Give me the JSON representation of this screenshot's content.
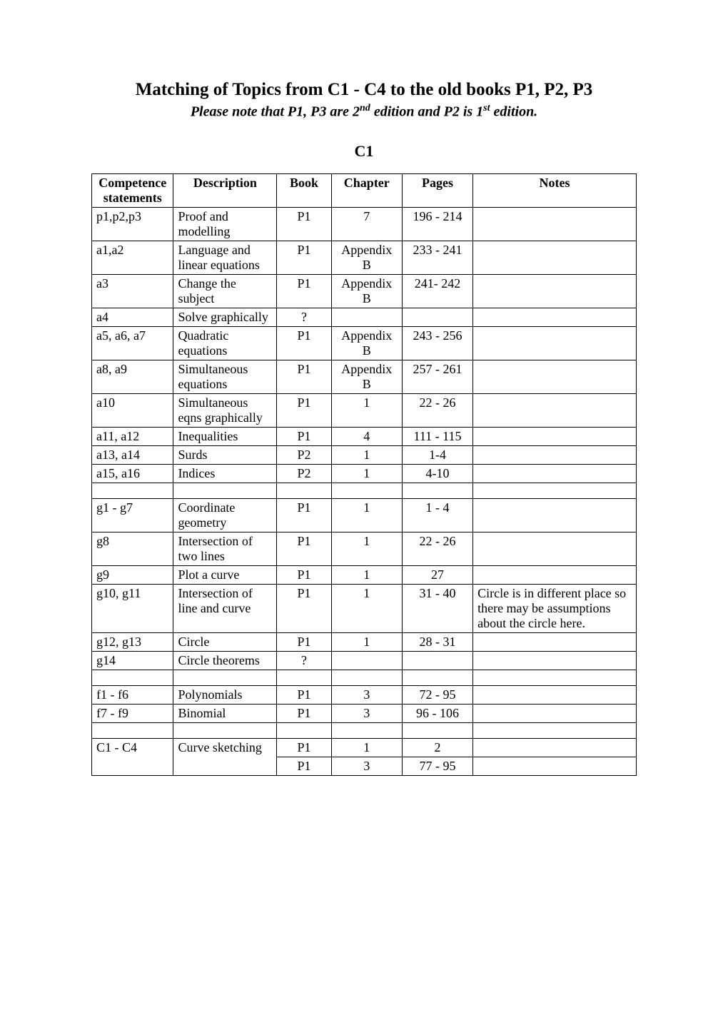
{
  "title": "Matching of Topics from C1 - C4 to the old books P1, P2, P3",
  "subtitle_html": "Please note that P1, P3 are 2<sup>nd</sup> edition and P2 is 1<sup>st</sup> edition.",
  "section_heading": "C1",
  "headers": {
    "col1": "Competence\nstatements",
    "col2": "Description",
    "col3": "Book",
    "col4": "Chapter",
    "col5": "Pages",
    "col6": "Notes"
  },
  "rows": [
    {
      "type": "data",
      "c1": "p1,p2,p3",
      "c2": "Proof and modelling",
      "c3": "P1",
      "c4": "7",
      "c5": "196 - 214",
      "c6": ""
    },
    {
      "type": "data",
      "c1": "a1,a2",
      "c2": "Language and linear equations",
      "c3": "P1",
      "c4": "Appendix B",
      "c5": "233 - 241",
      "c6": ""
    },
    {
      "type": "data",
      "c1": "a3",
      "c2": "Change the subject",
      "c3": "P1",
      "c4": "Appendix B",
      "c5": "241- 242",
      "c6": ""
    },
    {
      "type": "data",
      "c1": "a4",
      "c2": "Solve graphically",
      "c3": "?",
      "c4": "",
      "c5": "",
      "c6": ""
    },
    {
      "type": "data",
      "c1": "a5, a6, a7",
      "c2": "Quadratic equations",
      "c3": "P1",
      "c4": "Appendix B",
      "c5": "243 - 256",
      "c6": ""
    },
    {
      "type": "data",
      "c1": "a8, a9",
      "c2": "Simultaneous equations",
      "c3": "P1",
      "c4": "Appendix B",
      "c5": "257 - 261",
      "c6": ""
    },
    {
      "type": "data",
      "c1": "a10",
      "c2": "Simultaneous eqns graphically",
      "c3": "P1",
      "c4": "1",
      "c5": "22 - 26",
      "c6": ""
    },
    {
      "type": "data",
      "c1": "a11, a12",
      "c2": "Inequalities",
      "c3": "P1",
      "c4": "4",
      "c5": "111 - 115",
      "c6": ""
    },
    {
      "type": "data",
      "c1": "a13, a14",
      "c2": "Surds",
      "c3": "P2",
      "c4": "1",
      "c5": "1-4",
      "c6": ""
    },
    {
      "type": "data",
      "c1": "a15, a16",
      "c2": "Indices",
      "c3": "P2",
      "c4": "1",
      "c5": "4-10",
      "c6": ""
    },
    {
      "type": "empty"
    },
    {
      "type": "data",
      "c1": "g1 -  g7",
      "c2": "Coordinate geometry",
      "c3": "P1",
      "c4": "1",
      "c5": "1 - 4",
      "c6": ""
    },
    {
      "type": "data",
      "c1": "g8",
      "c2": "Intersection of two lines",
      "c3": "P1",
      "c4": "1",
      "c5": "22 - 26",
      "c6": ""
    },
    {
      "type": "data",
      "c1": "g9",
      "c2": "Plot a curve",
      "c3": "P1",
      "c4": "1",
      "c5": "27",
      "c6": ""
    },
    {
      "type": "data",
      "c1": "g10, g11",
      "c2": "Intersection of line and curve",
      "c3": "P1",
      "c4": "1",
      "c5": "31 - 40",
      "c6": "Circle is in different place so there may be assumptions about the circle here."
    },
    {
      "type": "data",
      "c1": "g12, g13",
      "c2": "Circle",
      "c3": "P1",
      "c4": "1",
      "c5": "28 - 31",
      "c6": ""
    },
    {
      "type": "data",
      "c1": "g14",
      "c2": "Circle theorems",
      "c3": "?",
      "c4": "",
      "c5": "",
      "c6": ""
    },
    {
      "type": "empty"
    },
    {
      "type": "data",
      "c1": "f1 - f6",
      "c2": "Polynomials",
      "c3": "P1",
      "c4": "3",
      "c5": "72 - 95",
      "c6": ""
    },
    {
      "type": "data",
      "c1": "f7 - f9",
      "c2": "Binomial",
      "c3": "P1",
      "c4": "3",
      "c5": "96 - 106",
      "c6": ""
    },
    {
      "type": "empty"
    },
    {
      "type": "double",
      "c1": "C1 - C4",
      "c2": "Curve sketching",
      "rows": [
        {
          "c3": "P1",
          "c4": "1",
          "c5": "2",
          "c6": ""
        },
        {
          "c3": "P1",
          "c4": "3",
          "c5": "77 - 95",
          "c6": ""
        }
      ]
    }
  ],
  "col_widths": [
    "15%",
    "19%",
    "10%",
    "13%",
    "13%",
    "30%"
  ]
}
